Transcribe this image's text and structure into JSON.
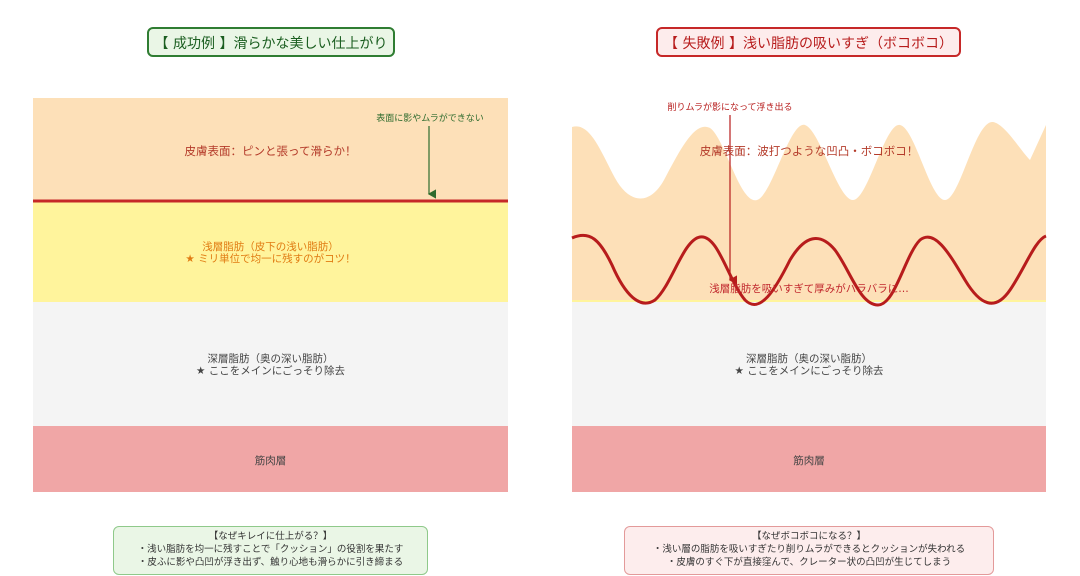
{
  "left": {
    "title": "【 成功例 】滑らかな美しい仕上がり",
    "annotation": "表面に影やムラができない",
    "skin_label": "皮膚表面：ピンと張って滑らか！",
    "shallow_line1": "浅層脂肪（皮下の浅い脂肪）",
    "shallow_line2": "★ ミリ単位で均一に残すのがコツ！",
    "deep_line1": "深層脂肪（奥の深い脂肪）",
    "deep_line2": "★ ここをメインにごっそり除去",
    "muscle_label": "筋肉層",
    "info_title": "【なぜキレイに仕上がる？】",
    "info_line1": "・浅い脂肪を均一に残すことで「クッション」の役割を果たす",
    "info_line2": "・皮ふに影や凸凹が浮き出ず、触り心地も滑らかに引き締まる"
  },
  "right": {
    "title": "【 失敗例 】浅い脂肪の吸いすぎ（ボコボコ）",
    "annotation": "削りムラが影になって浮き出る",
    "skin_label": "皮膚表面：波打つような凹凸・ボコボコ！",
    "shallow_label": "浅層脂肪を吸いすぎて厚みがバラバラに…",
    "deep_line1": "深層脂肪（奥の深い脂肪）",
    "deep_line2": "★ ここをメインにごっそり除去",
    "muscle_label": "筋肉層",
    "info_title": "【なぜボコボコになる？】",
    "info_line1": "・浅い層の脂肪を吸いすぎたり削りムラができるとクッションが失われる",
    "info_line2": "・皮膚のすぐ下が直接窪んで、クレーター状の凸凹が生じてしまう"
  },
  "colors": {
    "skin": "#fde0b8",
    "shallow_fat": "#fff49c",
    "deep_fat": "#f4f4f4",
    "muscle": "#f0a6a6",
    "boundary_line": "#c62828",
    "success_border": "#2f7d32",
    "failure_border": "#c62828"
  }
}
